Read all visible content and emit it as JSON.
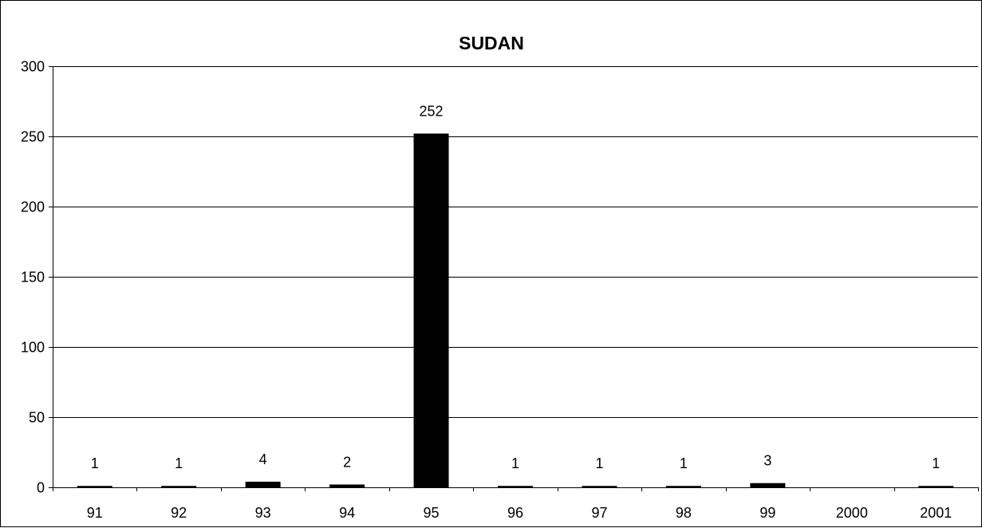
{
  "chart_data": {
    "type": "bar",
    "title": "SUDAN",
    "categories": [
      "91",
      "92",
      "93",
      "94",
      "95",
      "96",
      "97",
      "98",
      "99",
      "2000",
      "2001"
    ],
    "values": [
      1,
      1,
      4,
      2,
      252,
      1,
      1,
      1,
      3,
      0,
      1
    ],
    "data_labels": [
      "1",
      "1",
      "4",
      "2",
      "252",
      "1",
      "1",
      "1",
      "3",
      "",
      "1"
    ],
    "xlabel": "",
    "ylabel": "",
    "ylim": [
      0,
      300
    ],
    "yticks": [
      0,
      50,
      100,
      150,
      200,
      250,
      300
    ],
    "ytick_labels": [
      "0",
      "50",
      "100",
      "150",
      "200",
      "250",
      "300"
    ],
    "grid": true,
    "legend": "none",
    "bar_color": "#000000"
  }
}
